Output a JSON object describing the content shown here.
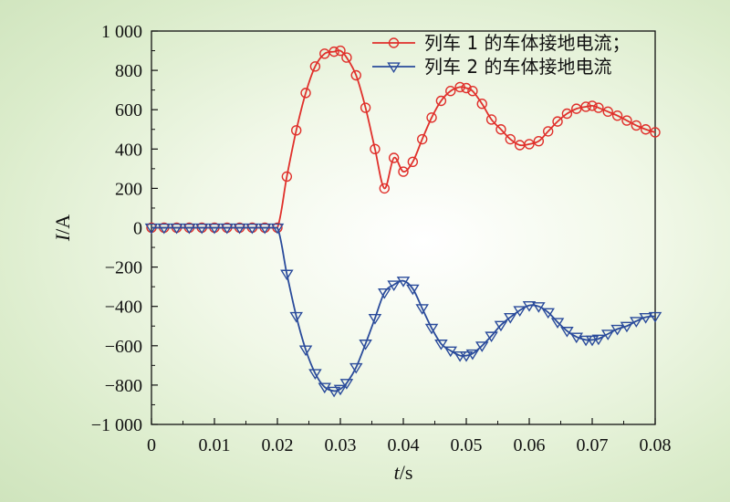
{
  "chart_data": {
    "type": "line",
    "xlabel": {
      "var": "t",
      "unit": "/s"
    },
    "ylabel": {
      "var": "I",
      "unit": "/A"
    },
    "xlim": [
      0,
      0.08
    ],
    "ylim": [
      -1000,
      1000
    ],
    "x_ticks": [
      0,
      0.01,
      0.02,
      0.03,
      0.04,
      0.05,
      0.06,
      0.07,
      0.08
    ],
    "x_tick_labels": [
      "0",
      "0.01",
      "0.02",
      "0.03",
      "0.04",
      "0.05",
      "0.06",
      "0.07",
      "0.08"
    ],
    "y_ticks": [
      -1000,
      -800,
      -600,
      -400,
      -200,
      0,
      200,
      400,
      600,
      800,
      1000
    ],
    "y_tick_labels": [
      "−1 000",
      "−800",
      "−600",
      "−400",
      "−200",
      "0",
      "200",
      "400",
      "600",
      "800",
      "1 000"
    ],
    "grid": false,
    "legend_position": "top-right",
    "series": [
      {
        "name": "列车 1 的车体接地电流；",
        "color": "#e0302b",
        "marker": "circle",
        "x": [
          0,
          0.002,
          0.004,
          0.006,
          0.008,
          0.01,
          0.012,
          0.014,
          0.016,
          0.018,
          0.02,
          0.0215,
          0.023,
          0.0245,
          0.026,
          0.0275,
          0.029,
          0.03,
          0.031,
          0.0325,
          0.034,
          0.0355,
          0.037,
          0.0385,
          0.04,
          0.0415,
          0.043,
          0.0445,
          0.046,
          0.0475,
          0.049,
          0.05,
          0.051,
          0.0525,
          0.054,
          0.0555,
          0.057,
          0.0585,
          0.06,
          0.0615,
          0.063,
          0.0645,
          0.066,
          0.0675,
          0.069,
          0.07,
          0.071,
          0.0725,
          0.074,
          0.0755,
          0.077,
          0.0785,
          0.08
        ],
        "y": [
          0,
          0,
          0,
          0,
          0,
          0,
          0,
          0,
          0,
          0,
          0,
          260,
          495,
          685,
          820,
          885,
          895,
          900,
          865,
          775,
          610,
          400,
          200,
          355,
          285,
          335,
          450,
          560,
          645,
          695,
          715,
          710,
          695,
          630,
          550,
          500,
          450,
          420,
          425,
          440,
          490,
          540,
          580,
          605,
          615,
          620,
          610,
          590,
          570,
          545,
          520,
          500,
          485
        ]
      },
      {
        "name": "列车 2 的车体接地电流",
        "color": "#2a4b9b",
        "marker": "triangle-down",
        "x": [
          0,
          0.002,
          0.004,
          0.006,
          0.008,
          0.01,
          0.012,
          0.014,
          0.016,
          0.018,
          0.02,
          0.0215,
          0.023,
          0.0245,
          0.026,
          0.0275,
          0.029,
          0.03,
          0.031,
          0.0325,
          0.034,
          0.0355,
          0.037,
          0.0385,
          0.04,
          0.0415,
          0.043,
          0.0445,
          0.046,
          0.0475,
          0.049,
          0.05,
          0.051,
          0.0525,
          0.054,
          0.0555,
          0.057,
          0.0585,
          0.06,
          0.0615,
          0.063,
          0.0645,
          0.066,
          0.0675,
          0.069,
          0.07,
          0.071,
          0.0725,
          0.074,
          0.0755,
          0.077,
          0.0785,
          0.08
        ],
        "y": [
          0,
          0,
          0,
          0,
          0,
          0,
          0,
          0,
          0,
          0,
          0,
          -235,
          -450,
          -620,
          -740,
          -810,
          -830,
          -820,
          -790,
          -710,
          -590,
          -460,
          -330,
          -290,
          -270,
          -310,
          -410,
          -510,
          -590,
          -625,
          -650,
          -650,
          -640,
          -600,
          -550,
          -495,
          -455,
          -420,
          -395,
          -400,
          -430,
          -480,
          -525,
          -555,
          -570,
          -570,
          -565,
          -540,
          -515,
          -500,
          -475,
          -455,
          -450
        ]
      }
    ]
  }
}
